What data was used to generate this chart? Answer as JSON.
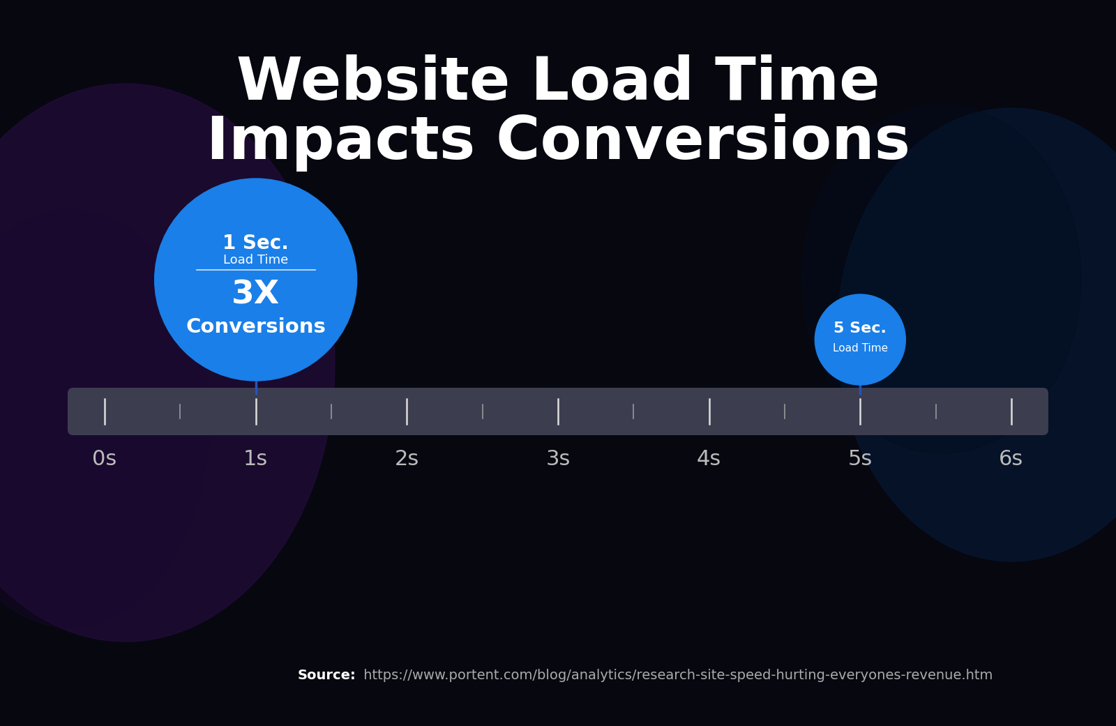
{
  "title_line1": "Website Load Time",
  "title_line2": "Impacts Conversions",
  "title_fontsize": 62,
  "title_color": "#ffffff",
  "title_fontweight": "bold",
  "bg_color": "#070710",
  "glow_left_color": "#1e0a35",
  "glow_right_color": "#051830",
  "timeline_bar_color": "#3d3d50",
  "tick_labels": [
    "0s",
    "1s",
    "2s",
    "3s",
    "4s",
    "5s",
    "6s"
  ],
  "tick_positions": [
    0,
    1,
    2,
    3,
    4,
    5,
    6
  ],
  "tick_label_fontsize": 22,
  "tick_label_color": "#bbbbbb",
  "large_circle_color": "#1a7fe8",
  "large_circle_label1": "1 Sec.",
  "large_circle_label2": "Load Time",
  "large_circle_label3": "3X",
  "large_circle_label4": "Conversions",
  "large_circle_label1_fontsize": 20,
  "large_circle_label2_fontsize": 13,
  "large_circle_label3_fontsize": 34,
  "large_circle_label4_fontsize": 21,
  "small_circle_color": "#1a7fe8",
  "small_circle_label1": "5 Sec.",
  "small_circle_label2": "Load Time",
  "small_circle_label1_fontsize": 16,
  "small_circle_label2_fontsize": 11,
  "connector_color": "#2255bb",
  "connector_linewidth": 2.5,
  "source_bold": "Source:",
  "source_normal": " https://www.portent.com/blog/analytics/research-site-speed-hurting-everyones-revenue.htm",
  "source_fontsize": 14
}
